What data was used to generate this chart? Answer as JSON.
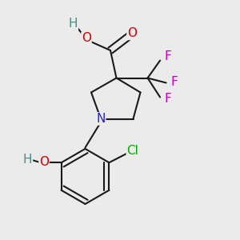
{
  "background_color": "#ebebeb",
  "bond_color": "#1a1a1a",
  "lw": 1.5,
  "fig_width": 3.0,
  "fig_height": 3.0,
  "dpi": 100,
  "colors": {
    "N": "#2222cc",
    "O": "#cc0000",
    "H": "#4a8a8a",
    "Cl": "#00aa00",
    "F": "#cc00cc",
    "C": "#1a1a1a"
  }
}
